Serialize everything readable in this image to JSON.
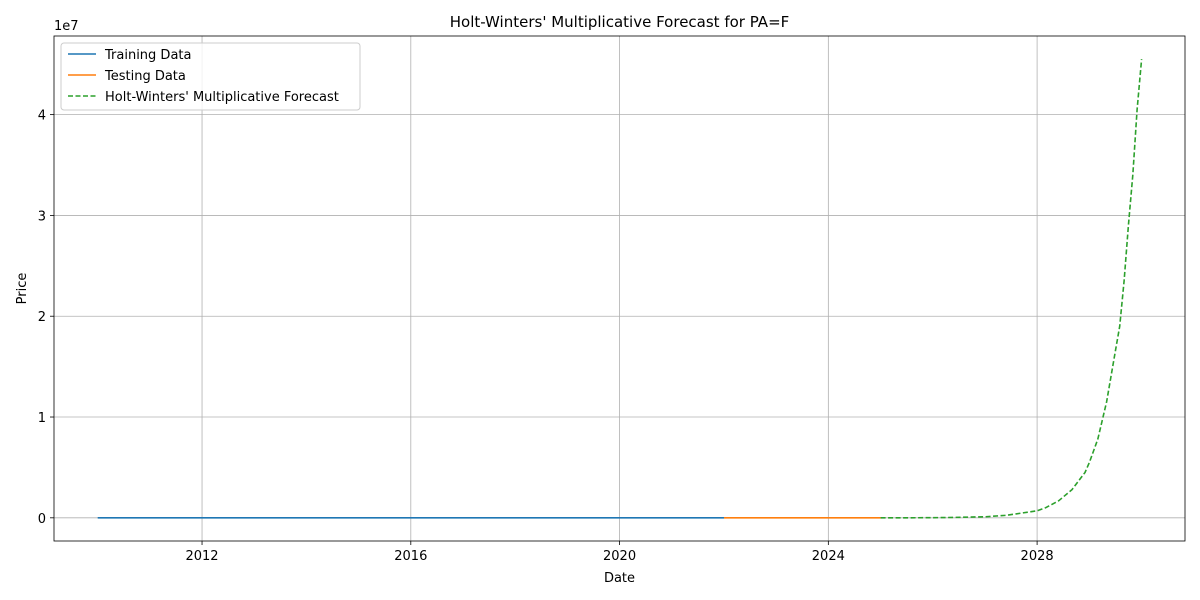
{
  "chart_data": {
    "type": "line",
    "title": "Holt-Winters' Multiplicative Forecast for PA=F",
    "xlabel": "Date",
    "ylabel": "Price",
    "y_offset_label": "1e7",
    "x_ticks": [
      "2012",
      "2016",
      "2020",
      "2024",
      "2028"
    ],
    "y_ticks": [
      0,
      1,
      2,
      3,
      4
    ],
    "y_tick_labels": [
      "0",
      "1",
      "2",
      "3",
      "4"
    ],
    "x_range": [
      "2009-03-01",
      "2030-11-01"
    ],
    "y_range": [
      -2300000,
      47800000
    ],
    "grid": true,
    "legend_position": "top-left",
    "series": [
      {
        "name": "Training Data",
        "color": "#1f77b4",
        "style": "solid",
        "points": [
          [
            "2010-01-01",
            1100
          ],
          [
            "2014-01-01",
            800
          ],
          [
            "2018-01-01",
            1000
          ],
          [
            "2020-01-01",
            2200
          ],
          [
            "2022-01-01",
            2100
          ]
        ]
      },
      {
        "name": "Testing Data",
        "color": "#ff7f0e",
        "style": "solid",
        "points": [
          [
            "2022-01-01",
            2100
          ],
          [
            "2023-01-01",
            1400
          ],
          [
            "2024-01-01",
            1000
          ],
          [
            "2025-01-01",
            1000
          ]
        ]
      },
      {
        "name": "Holt-Winters' Multiplicative Forecast",
        "color": "#2ca02c",
        "style": "dashed",
        "points": [
          [
            "2025-01-01",
            1200
          ],
          [
            "2025-06-01",
            5000
          ],
          [
            "2026-01-01",
            15000
          ],
          [
            "2026-06-01",
            40000
          ],
          [
            "2027-01-01",
            100000
          ],
          [
            "2027-06-01",
            250000
          ],
          [
            "2028-01-01",
            700000
          ],
          [
            "2028-03-01",
            1000000
          ],
          [
            "2028-06-01",
            1700000
          ],
          [
            "2028-09-01",
            2800000
          ],
          [
            "2028-12-01",
            4500000
          ],
          [
            "2029-01-01",
            5500000
          ],
          [
            "2029-03-01",
            7800000
          ],
          [
            "2029-05-01",
            11500000
          ],
          [
            "2029-07-01",
            16500000
          ],
          [
            "2029-08-01",
            19000000
          ],
          [
            "2029-09-01",
            23500000
          ],
          [
            "2029-10-01",
            29000000
          ],
          [
            "2029-11-01",
            34000000
          ],
          [
            "2029-12-01",
            40500000
          ],
          [
            "2030-01-01",
            45500000
          ]
        ]
      }
    ]
  }
}
